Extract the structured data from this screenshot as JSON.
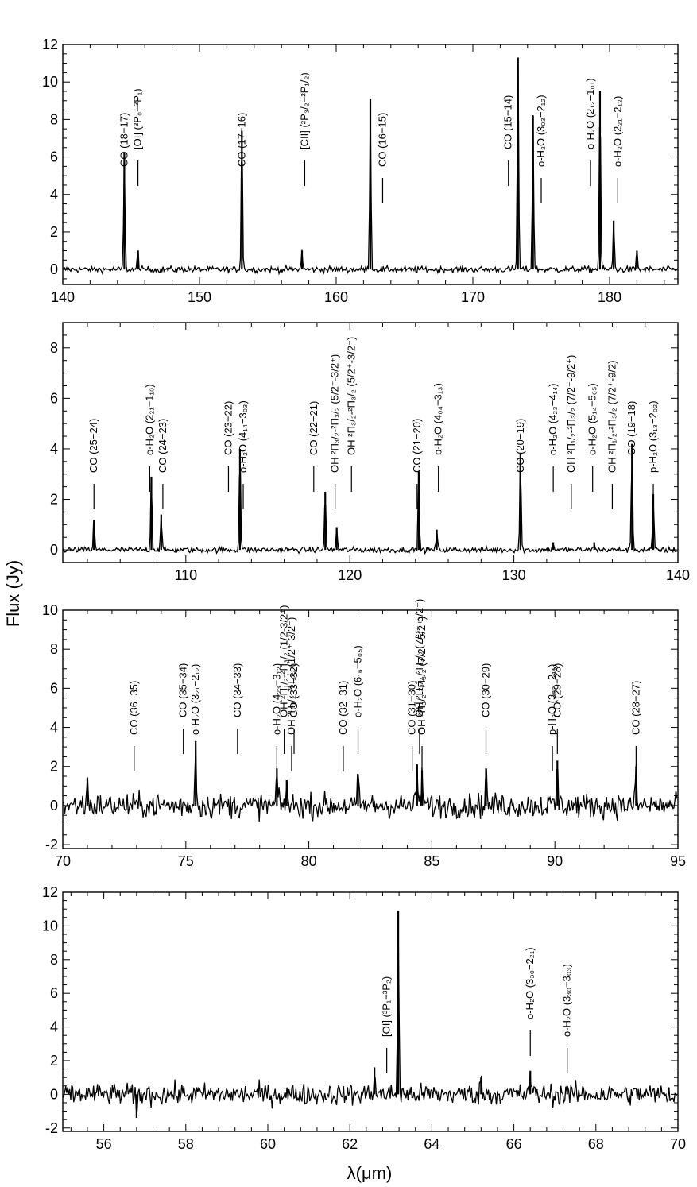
{
  "figure": {
    "ylabel": "Flux (Jy)",
    "xlabel": "λ(μm)"
  },
  "chart_data": [
    {
      "type": "line",
      "panel": 1,
      "xlim": [
        140,
        185
      ],
      "ylim": [
        -0.8,
        12
      ],
      "xticks": [
        140,
        150,
        160,
        170,
        180
      ],
      "yticks": [
        0,
        2,
        4,
        6,
        8,
        10,
        12
      ],
      "peaks": [
        {
          "x": 144.5,
          "y": 6.2
        },
        {
          "x": 145.5,
          "y": 1.0
        },
        {
          "x": 153.1,
          "y": 7.4
        },
        {
          "x": 157.5,
          "y": 1.0
        },
        {
          "x": 162.5,
          "y": 9.1
        },
        {
          "x": 173.3,
          "y": 11.3
        },
        {
          "x": 174.4,
          "y": 8.2
        },
        {
          "x": 179.3,
          "y": 9.5
        },
        {
          "x": 180.3,
          "y": 2.6
        },
        {
          "x": 182.0,
          "y": 1.0
        }
      ],
      "lines": [
        {
          "label": "CO (18−17)",
          "x": 144.5
        },
        {
          "label": "[OI] (³P₀−³P₁)",
          "x": 145.5
        },
        {
          "label": "CO (17−16)",
          "x": 153.1
        },
        {
          "label": "[CII] (²P₃/₂−²P₁/₂)",
          "x": 157.7
        },
        {
          "label": "CO (16−15)",
          "x": 163.4
        },
        {
          "label": "CO (15−14)",
          "x": 172.6
        },
        {
          "label": "o-H₂O (3₀₃−2₁₂)",
          "x": 175.0
        },
        {
          "label": "o-H₂O (2₁₂−1₀₁)",
          "x": 178.6
        },
        {
          "label": "o-H₂O (2₂₁−2₁₂)",
          "x": 180.6
        }
      ]
    },
    {
      "type": "line",
      "panel": 2,
      "xlim": [
        102.5,
        140
      ],
      "ylim": [
        -0.5,
        9
      ],
      "xticks": [
        110,
        120,
        130,
        140
      ],
      "yticks": [
        0,
        2,
        4,
        6,
        8
      ],
      "peaks": [
        {
          "x": 104.4,
          "y": 1.2
        },
        {
          "x": 107.9,
          "y": 2.9
        },
        {
          "x": 108.5,
          "y": 1.4
        },
        {
          "x": 113.3,
          "y": 4.0
        },
        {
          "x": 118.5,
          "y": 2.3
        },
        {
          "x": 119.2,
          "y": 0.9
        },
        {
          "x": 124.2,
          "y": 3.1
        },
        {
          "x": 125.3,
          "y": 0.8
        },
        {
          "x": 130.4,
          "y": 3.8
        },
        {
          "x": 132.4,
          "y": 0.3
        },
        {
          "x": 134.9,
          "y": 0.3
        },
        {
          "x": 137.2,
          "y": 4.2
        },
        {
          "x": 138.5,
          "y": 2.2
        }
      ],
      "lines": [
        {
          "label": "CO (25−24)",
          "x": 104.4
        },
        {
          "label": "o-H₂O (2₂₁−1₁₀)",
          "x": 107.8
        },
        {
          "label": "CO (24−23)",
          "x": 108.6
        },
        {
          "label": "CO (23−22)",
          "x": 112.6
        },
        {
          "label": "o-H₂O (4₁₄−3₀₃)",
          "x": 113.5
        },
        {
          "label": "CO (22−21)",
          "x": 117.8
        },
        {
          "label": "OH ²Π₃/₂-²Π₃/₂ (5/2⁻-3/2⁺)",
          "x": 119.1
        },
        {
          "label": "OH ²Π₃/₂-²Π₃/₂ (5/2⁺-3/2⁻)",
          "x": 120.1
        },
        {
          "label": "CO (21−20)",
          "x": 124.1
        },
        {
          "label": "p-H₂O (4₀₄−3₁₃)",
          "x": 125.4
        },
        {
          "label": "CO (20−19)",
          "x": 130.4
        },
        {
          "label": "o-H₂O (4₂₃−4₁₄)",
          "x": 132.4
        },
        {
          "label": "OH ²Π₁/₂-²Π₃/₂ (7/2⁻-9/2⁺)",
          "x": 133.5
        },
        {
          "label": "o-H₂O (5₁₄−5₀₅)",
          "x": 134.8
        },
        {
          "label": "OH ²Π₁/₂-²Π₃/₂ (7/2⁺-9/2)",
          "x": 136.0
        },
        {
          "label": "CO (19−18)",
          "x": 137.2
        },
        {
          "label": "p-H₂O (3₁₃−2₀₂)",
          "x": 138.5
        }
      ]
    },
    {
      "type": "line",
      "panel": 3,
      "xlim": [
        70,
        95
      ],
      "ylim": [
        -2.2,
        10
      ],
      "xticks": [
        70,
        75,
        80,
        85,
        90,
        95
      ],
      "yticks": [
        -2,
        0,
        2,
        4,
        6,
        8,
        10
      ],
      "peaks": [
        {
          "x": 71.0,
          "y": 1.4
        },
        {
          "x": 75.4,
          "y": 3.3
        },
        {
          "x": 78.7,
          "y": 1.9
        },
        {
          "x": 79.1,
          "y": 1.3
        },
        {
          "x": 82.0,
          "y": 1.6
        },
        {
          "x": 84.4,
          "y": 2.1
        },
        {
          "x": 84.6,
          "y": 1.8
        },
        {
          "x": 87.2,
          "y": 1.9
        },
        {
          "x": 90.1,
          "y": 2.3
        },
        {
          "x": 93.3,
          "y": 2.0
        }
      ],
      "lines": [
        {
          "label": "CO (36−35)",
          "x": 72.9
        },
        {
          "label": "CO (35−34)",
          "x": 74.9
        },
        {
          "label": "o-H₂O (3₂₁−2₁₂)",
          "x": 75.4
        },
        {
          "label": "CO (34−33)",
          "x": 77.1
        },
        {
          "label": "o-H₂O (4₂₃−3₁₂)",
          "x": 78.7
        },
        {
          "label": "OH ²Π₁/₂-²Π₃/₂ (1/2-3/2⁺)",
          "x": 79.0
        },
        {
          "label": "OH ²Π₁/₂-²Π₃/₂ (1/2⁺-3/2⁻)",
          "x": 79.3
        },
        {
          "label": "CO (33−32)",
          "x": 79.4
        },
        {
          "label": "CO (32−31)",
          "x": 81.4
        },
        {
          "label": "o-H₂O (6₁₆−5₀₅)",
          "x": 82.0
        },
        {
          "label": "CO (31−30)",
          "x": 84.2
        },
        {
          "label": "OH ²Π₃/₂-²Π₃/₂ (7/2⁺-5/2⁻)",
          "x": 84.5
        },
        {
          "label": "OH ²Π₃/₂-²Π₃/₂ (7/2⁻-5/2⁺)",
          "x": 84.6
        },
        {
          "label": "CO (30−29)",
          "x": 87.2
        },
        {
          "label": "p-H₂O (3₂₂−2₁₁)",
          "x": 89.9
        },
        {
          "label": "CO (29−28)",
          "x": 90.1
        },
        {
          "label": "CO (28−27)",
          "x": 93.3
        }
      ]
    },
    {
      "type": "line",
      "panel": 4,
      "xlim": [
        55,
        70
      ],
      "ylim": [
        -2.2,
        12
      ],
      "xticks": [
        56,
        58,
        60,
        62,
        64,
        66,
        68,
        70
      ],
      "yticks": [
        -2,
        0,
        2,
        4,
        6,
        8,
        10,
        12
      ],
      "peaks": [
        {
          "x": 56.8,
          "y": -1.4
        },
        {
          "x": 62.6,
          "y": 1.6
        },
        {
          "x": 63.18,
          "y": 10.9
        },
        {
          "x": 65.2,
          "y": 1.0
        },
        {
          "x": 66.4,
          "y": 1.4
        },
        {
          "x": 67.3,
          "y": 0.5
        }
      ],
      "lines": [
        {
          "label": "[OI] (³P₁−³P₂)",
          "x": 62.9
        },
        {
          "label": "o-H₂O (3₃₀−2₂₁)",
          "x": 66.4
        },
        {
          "label": "o-H₂O (3₃₀−3₀₃)",
          "x": 67.3
        }
      ]
    }
  ]
}
